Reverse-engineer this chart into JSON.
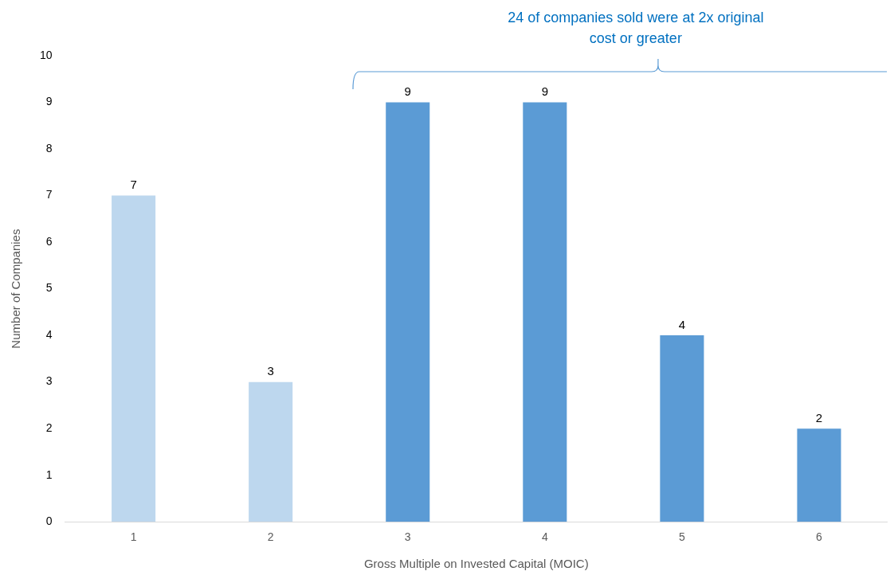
{
  "chart_data": {
    "type": "bar",
    "categories": [
      "1",
      "2",
      "3",
      "4",
      "5",
      "6"
    ],
    "values": [
      7,
      3,
      9,
      9,
      4,
      2
    ],
    "colors": [
      "#bdd7ee",
      "#bdd7ee",
      "#5b9bd5",
      "#5b9bd5",
      "#5b9bd5",
      "#5b9bd5"
    ],
    "ylim": [
      0,
      10
    ],
    "yticks": [
      0,
      1,
      2,
      3,
      4,
      5,
      6,
      7,
      8,
      9,
      10
    ],
    "grid": false,
    "legend": false,
    "data_labels": true,
    "xlabel": "Gross Multiple on Invested Capital (MOIC)",
    "ylabel": "Number of Companies",
    "annotations": [
      "24 of companies sold were at 2x original cost or greater"
    ]
  }
}
